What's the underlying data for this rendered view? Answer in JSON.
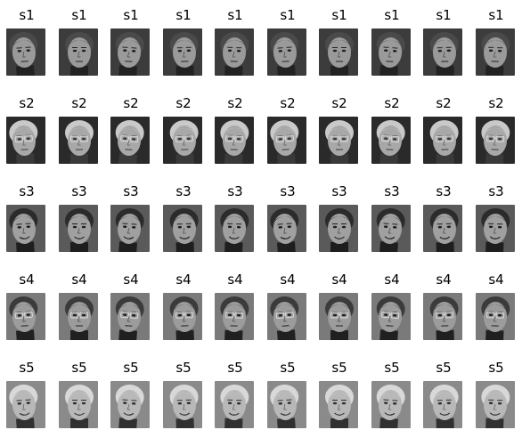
{
  "rows": [
    {
      "label": "s1",
      "count": 10,
      "palette": {
        "bg": "#3c3c3c",
        "skin": "#9a9a9a",
        "hair": "#4a4a4a",
        "dark": "#222222"
      },
      "glasses": false,
      "smile": false
    },
    {
      "label": "s2",
      "count": 10,
      "palette": {
        "bg": "#2a2a2a",
        "skin": "#a8a8a8",
        "hair": "#c9c9c9",
        "dark": "#3a3a3a"
      },
      "glasses": true,
      "smile": false
    },
    {
      "label": "s3",
      "count": 10,
      "palette": {
        "bg": "#5a5a5a",
        "skin": "#a0a0a0",
        "hair": "#2b2b2b",
        "dark": "#1e1e1e"
      },
      "glasses": false,
      "smile": true
    },
    {
      "label": "s4",
      "count": 10,
      "palette": {
        "bg": "#7a7a7a",
        "skin": "#9c9c9c",
        "hair": "#3b3b3b",
        "dark": "#202020"
      },
      "glasses": true,
      "smile": false
    },
    {
      "label": "s5",
      "count": 10,
      "palette": {
        "bg": "#8a8a8a",
        "skin": "#b8b8b8",
        "hair": "#d8d8d8",
        "dark": "#303030"
      },
      "glasses": false,
      "smile": true
    }
  ]
}
